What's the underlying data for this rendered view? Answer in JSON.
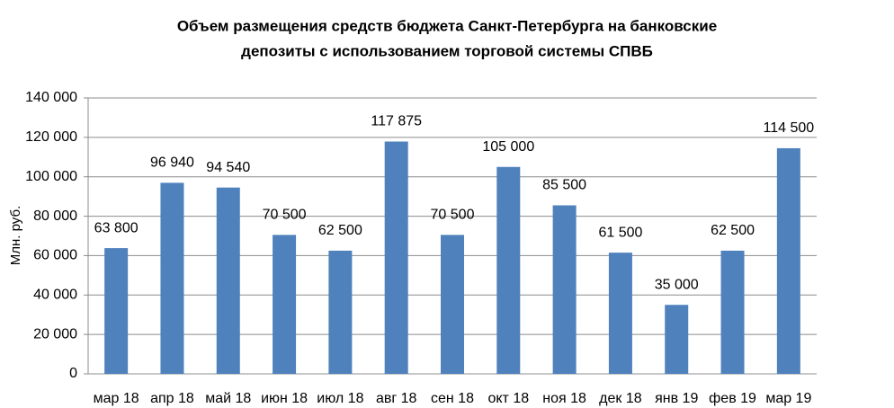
{
  "chart_data": {
    "type": "bar",
    "title": [
      "Объем размещения средств бюджета Санкт-Петербурга на банковские",
      "депозиты с использованием торговой системы СПВБ"
    ],
    "y_label": "Млн. руб.",
    "categories": [
      "мар 18",
      "апр 18",
      "май 18",
      "июн 18",
      "июл 18",
      "авг 18",
      "сен 18",
      "окт 18",
      "ноя 18",
      "дек 18",
      "янв 19",
      "фев 19",
      "мар 19"
    ],
    "values": [
      63800,
      96940,
      94540,
      70500,
      62500,
      117875,
      70500,
      105000,
      85500,
      61500,
      35000,
      62500,
      114500
    ],
    "value_labels": [
      "63 800",
      "96 940",
      "94 540",
      "70 500",
      "62 500",
      "117 875",
      "70 500",
      "105 000",
      "85 500",
      "61 500",
      "35 000",
      "62 500",
      "114 500"
    ],
    "color": "#4f81bd",
    "ylim": [
      0,
      140000
    ],
    "yticks": [
      0,
      {
        "value": 20000,
        "label": "20 000"
      },
      {
        "value": 40000,
        "label": "40 000"
      },
      {
        "value": 60000,
        "label": "60 000"
      },
      {
        "value": 80000,
        "label": "80 000"
      },
      {
        "value": 100000,
        "label": "100 000"
      },
      {
        "value": 120000,
        "label": "120 000"
      },
      {
        "value": 140000,
        "label": "140 000"
      }
    ],
    "grid": true
  }
}
